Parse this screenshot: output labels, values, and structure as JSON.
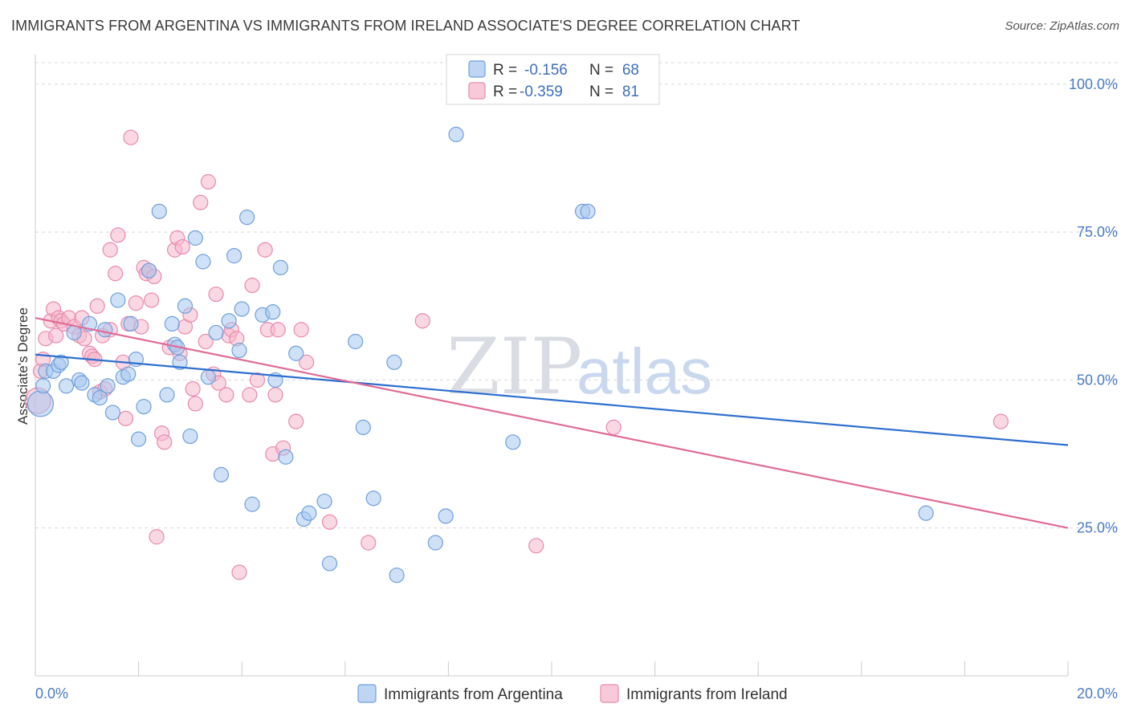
{
  "header": {
    "title": "IMMIGRANTS FROM ARGENTINA VS IMMIGRANTS FROM IRELAND ASSOCIATE'S DEGREE CORRELATION CHART",
    "source": "Source: ZipAtlas.com"
  },
  "watermark": {
    "zip": "ZIP",
    "atlas": "atlas"
  },
  "colors": {
    "argentina_fill": "#a8c8f0",
    "argentina_stroke": "#6fa0dc",
    "argentina_line": "#2d6fcf",
    "ireland_fill": "#f6b8cc",
    "ireland_stroke": "#e98aaa",
    "ireland_line": "#e06c96",
    "grid": "#d8d8d8",
    "tick_text": "#4a7bc6"
  },
  "legend": {
    "rows": [
      {
        "r_label": "R =",
        "r_value": "-0.156",
        "n_label": "N =",
        "n_value": "68"
      },
      {
        "r_label": "R =",
        "r_value": "-0.359",
        "n_label": "N =",
        "n_value": "81"
      }
    ]
  },
  "chart_data": {
    "type": "scatter",
    "title": "IMMIGRANTS FROM ARGENTINA VS IMMIGRANTS FROM IRELAND ASSOCIATE'S DEGREE CORRELATION CHART",
    "xlabel": "",
    "ylabel": "Associate's Degree",
    "xlim": [
      0,
      20
    ],
    "ylim": [
      0,
      105
    ],
    "x_tick_labels": [
      "0.0%",
      "20.0%"
    ],
    "y_ticks": [
      25,
      50,
      75,
      100
    ],
    "y_tick_labels": [
      "25.0%",
      "50.0%",
      "75.0%",
      "100.0%"
    ],
    "grid": true,
    "legend_position": "top-center",
    "series": [
      {
        "name": "Immigrants from Argentina",
        "r": -0.156,
        "n": 68,
        "trend": {
          "x0": 0,
          "y0": 54.3,
          "x1": 20,
          "y1": 39.0
        },
        "points": [
          [
            0.1,
            46.0
          ],
          [
            0.15,
            49.0
          ],
          [
            0.2,
            51.5
          ],
          [
            0.35,
            51.5
          ],
          [
            0.45,
            52.5
          ],
          [
            0.5,
            53.0
          ],
          [
            0.6,
            49.0
          ],
          [
            0.75,
            58.0
          ],
          [
            0.85,
            50.0
          ],
          [
            0.9,
            49.5
          ],
          [
            1.05,
            59.5
          ],
          [
            1.15,
            47.5
          ],
          [
            1.25,
            47.0
          ],
          [
            1.35,
            58.5
          ],
          [
            1.4,
            49.0
          ],
          [
            1.5,
            44.5
          ],
          [
            1.6,
            63.5
          ],
          [
            1.7,
            50.5
          ],
          [
            1.8,
            51.0
          ],
          [
            1.85,
            59.5
          ],
          [
            1.95,
            53.5
          ],
          [
            2.0,
            40.0
          ],
          [
            2.1,
            45.5
          ],
          [
            2.2,
            68.5
          ],
          [
            2.4,
            78.5
          ],
          [
            2.55,
            47.5
          ],
          [
            2.65,
            59.5
          ],
          [
            2.7,
            56.0
          ],
          [
            2.75,
            55.5
          ],
          [
            2.8,
            53.0
          ],
          [
            2.9,
            62.5
          ],
          [
            3.0,
            40.5
          ],
          [
            3.1,
            74.0
          ],
          [
            3.25,
            70.0
          ],
          [
            3.35,
            50.5
          ],
          [
            3.5,
            58.0
          ],
          [
            3.6,
            34.0
          ],
          [
            3.75,
            60.0
          ],
          [
            3.85,
            71.0
          ],
          [
            3.95,
            55.0
          ],
          [
            4.0,
            62.0
          ],
          [
            4.1,
            77.5
          ],
          [
            4.2,
            29.0
          ],
          [
            4.4,
            61.0
          ],
          [
            4.6,
            61.5
          ],
          [
            4.65,
            50.0
          ],
          [
            4.75,
            69.0
          ],
          [
            4.85,
            37.0
          ],
          [
            5.05,
            54.5
          ],
          [
            5.2,
            26.5
          ],
          [
            5.3,
            27.5
          ],
          [
            5.6,
            29.5
          ],
          [
            5.7,
            19.0
          ],
          [
            6.2,
            56.5
          ],
          [
            6.35,
            42.0
          ],
          [
            6.55,
            30.0
          ],
          [
            6.95,
            53.0
          ],
          [
            7.0,
            17.0
          ],
          [
            7.75,
            22.5
          ],
          [
            7.95,
            27.0
          ],
          [
            8.15,
            91.5
          ],
          [
            9.25,
            39.5
          ],
          [
            10.6,
            78.5
          ],
          [
            10.7,
            78.5
          ],
          [
            17.25,
            27.5
          ]
        ]
      },
      {
        "name": "Immigrants from Ireland",
        "r": -0.359,
        "n": 81,
        "trend": {
          "x0": 0,
          "y0": 60.5,
          "x1": 20,
          "y1": 25.0
        },
        "points": [
          [
            0.05,
            46.5
          ],
          [
            0.1,
            51.5
          ],
          [
            0.15,
            53.5
          ],
          [
            0.2,
            57.0
          ],
          [
            0.3,
            60.0
          ],
          [
            0.35,
            62.0
          ],
          [
            0.4,
            57.5
          ],
          [
            0.45,
            60.5
          ],
          [
            0.5,
            60.0
          ],
          [
            0.55,
            59.5
          ],
          [
            0.65,
            60.5
          ],
          [
            0.75,
            59.0
          ],
          [
            0.85,
            57.5
          ],
          [
            0.9,
            60.5
          ],
          [
            0.95,
            57.0
          ],
          [
            1.05,
            54.5
          ],
          [
            1.1,
            54.0
          ],
          [
            1.15,
            53.5
          ],
          [
            1.2,
            62.5
          ],
          [
            1.25,
            48.0
          ],
          [
            1.3,
            57.5
          ],
          [
            1.35,
            48.5
          ],
          [
            1.45,
            58.5
          ],
          [
            1.45,
            72.0
          ],
          [
            1.55,
            68.0
          ],
          [
            1.6,
            74.5
          ],
          [
            1.7,
            53.0
          ],
          [
            1.75,
            43.5
          ],
          [
            1.8,
            59.5
          ],
          [
            1.85,
            91.0
          ],
          [
            1.95,
            63.0
          ],
          [
            2.05,
            59.0
          ],
          [
            2.1,
            69.0
          ],
          [
            2.15,
            68.0
          ],
          [
            2.2,
            68.5
          ],
          [
            2.25,
            63.5
          ],
          [
            2.3,
            67.5
          ],
          [
            2.35,
            23.5
          ],
          [
            2.45,
            41.0
          ],
          [
            2.5,
            39.5
          ],
          [
            2.6,
            55.5
          ],
          [
            2.7,
            72.0
          ],
          [
            2.75,
            74.0
          ],
          [
            2.8,
            54.5
          ],
          [
            2.85,
            72.5
          ],
          [
            2.9,
            59.0
          ],
          [
            3.0,
            61.0
          ],
          [
            3.05,
            48.5
          ],
          [
            3.1,
            46.0
          ],
          [
            3.2,
            80.0
          ],
          [
            3.3,
            56.5
          ],
          [
            3.35,
            83.5
          ],
          [
            3.45,
            51.0
          ],
          [
            3.5,
            64.5
          ],
          [
            3.55,
            49.5
          ],
          [
            3.7,
            47.5
          ],
          [
            3.75,
            57.5
          ],
          [
            3.8,
            58.5
          ],
          [
            3.9,
            57.0
          ],
          [
            3.95,
            17.5
          ],
          [
            4.15,
            47.5
          ],
          [
            4.2,
            66.0
          ],
          [
            4.3,
            50.0
          ],
          [
            4.45,
            72.0
          ],
          [
            4.5,
            58.5
          ],
          [
            4.6,
            37.5
          ],
          [
            4.65,
            47.5
          ],
          [
            4.7,
            58.5
          ],
          [
            4.8,
            38.5
          ],
          [
            5.05,
            43.0
          ],
          [
            5.15,
            58.5
          ],
          [
            5.25,
            53.0
          ],
          [
            5.7,
            26.0
          ],
          [
            6.45,
            22.5
          ],
          [
            7.5,
            60.0
          ],
          [
            9.7,
            22.0
          ],
          [
            11.2,
            42.0
          ],
          [
            18.7,
            43.0
          ]
        ]
      }
    ]
  }
}
